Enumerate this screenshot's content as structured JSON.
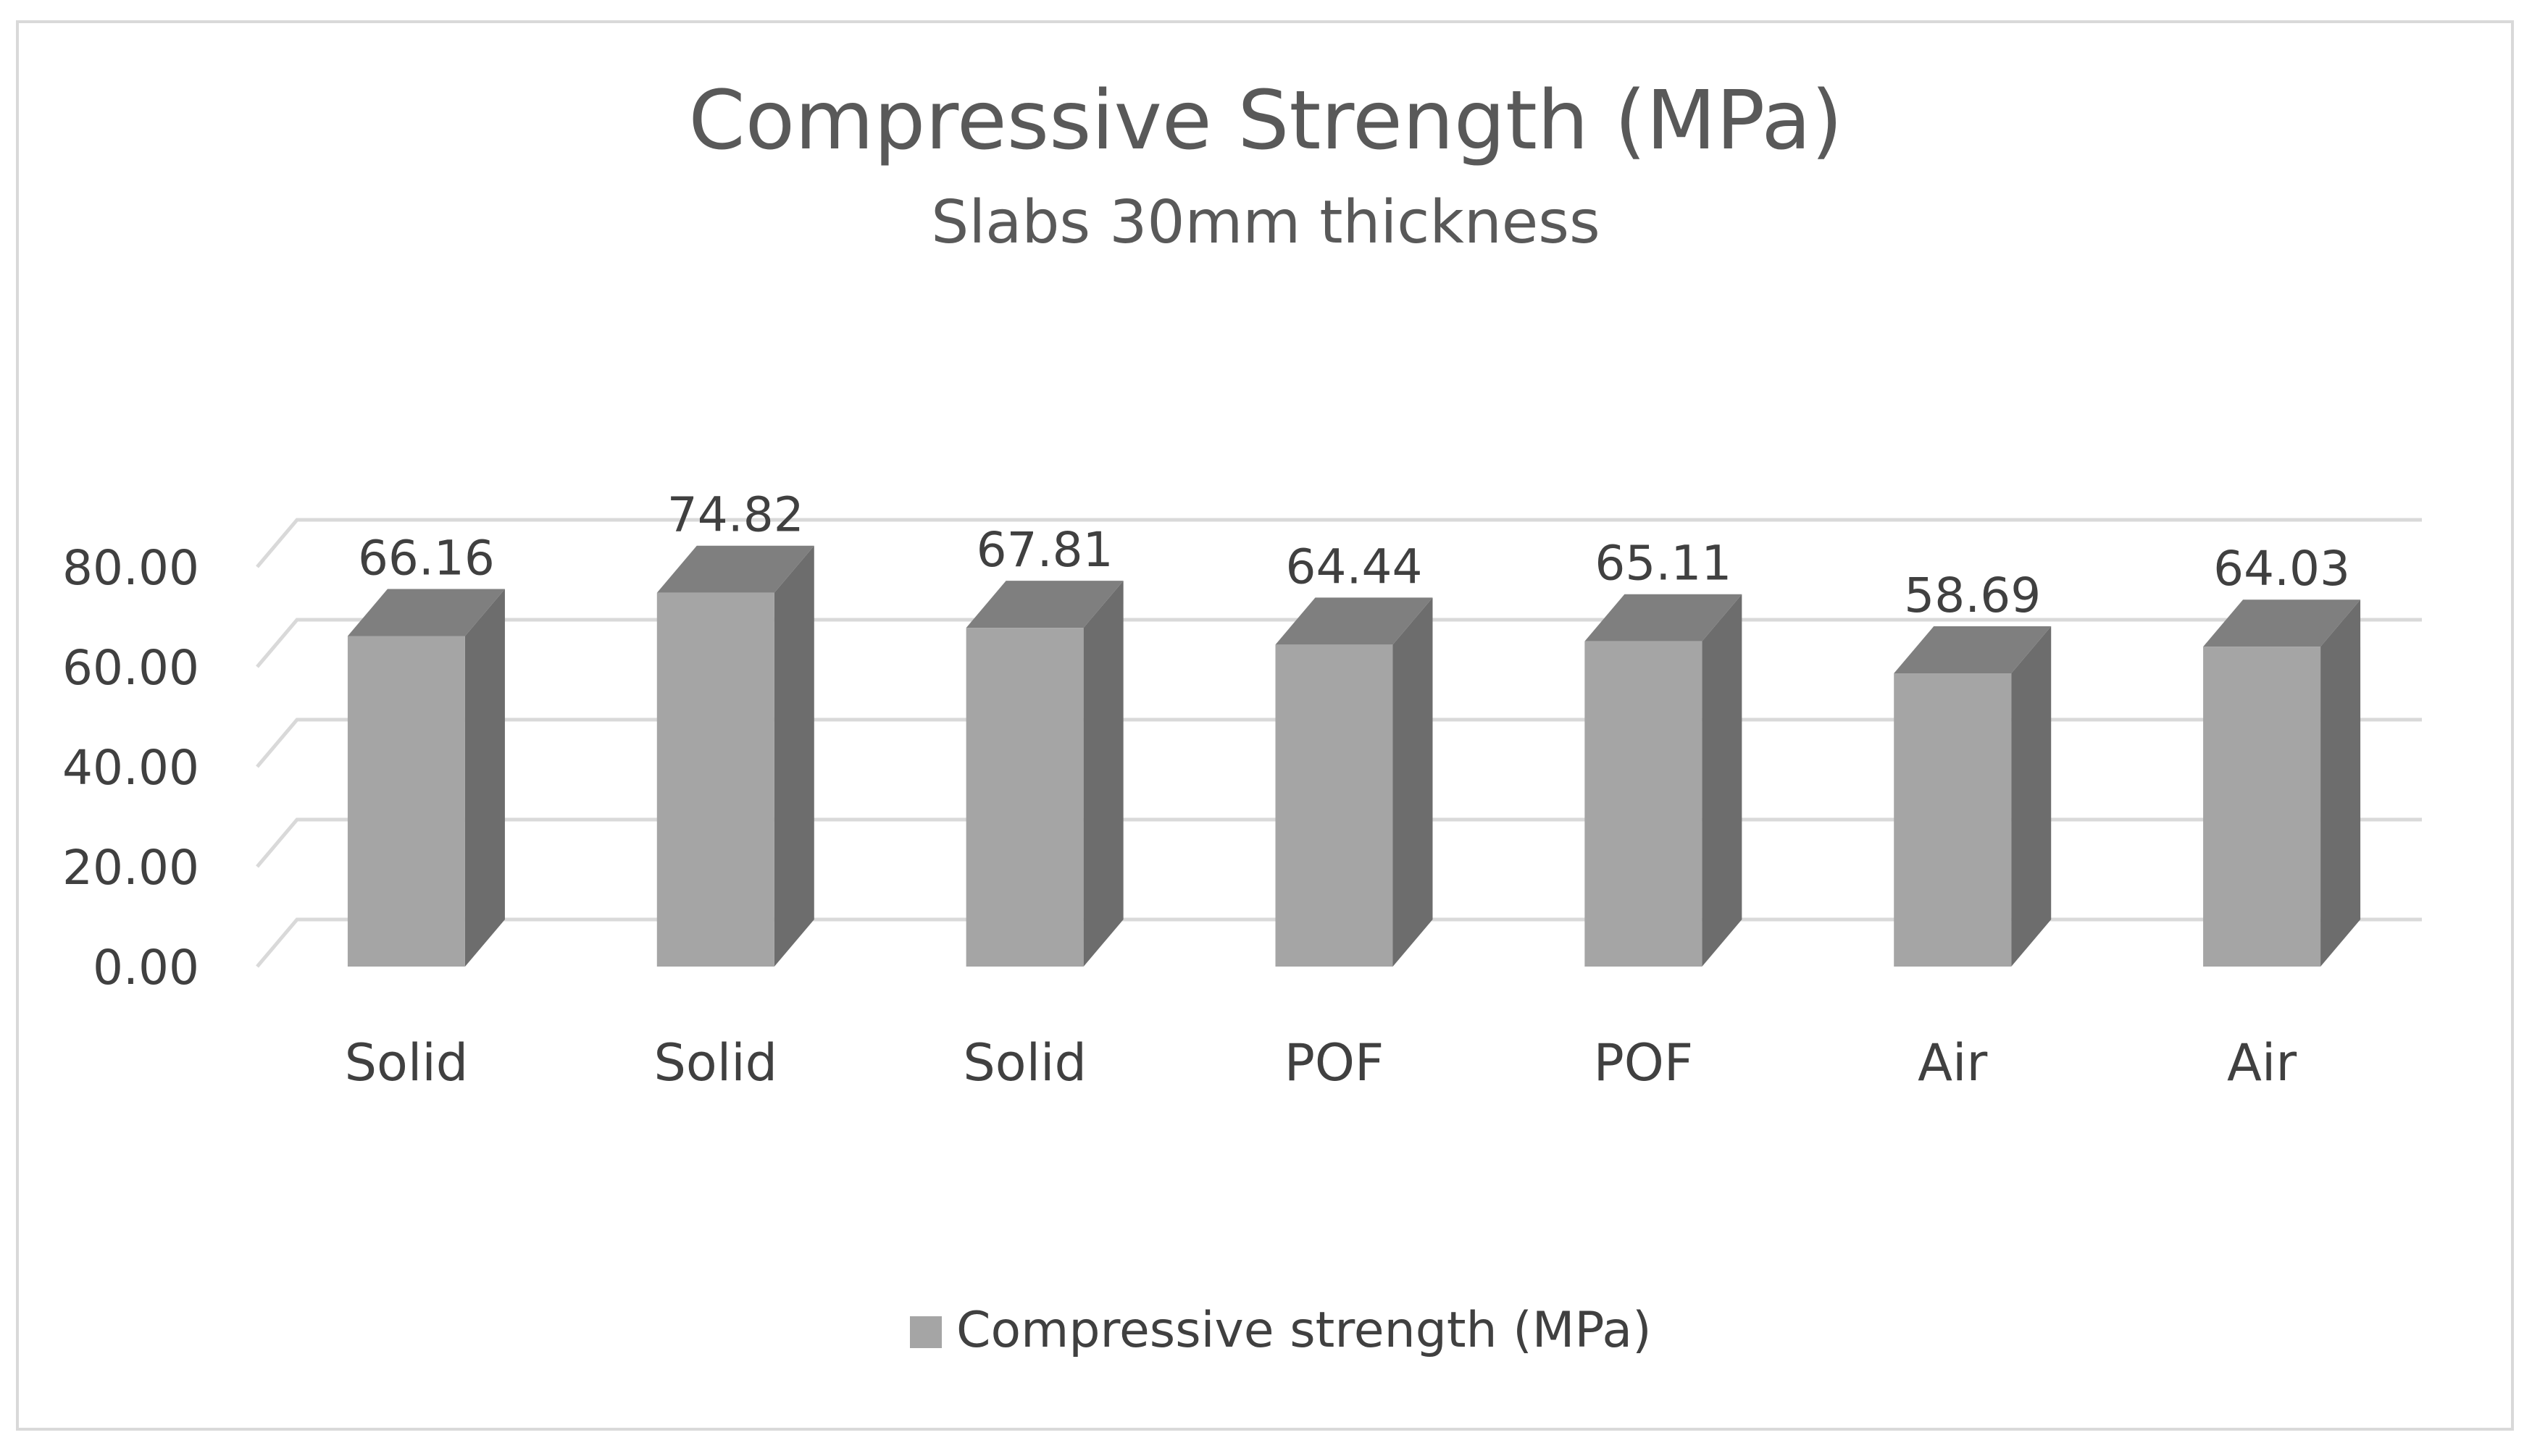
{
  "chart_data": {
    "type": "bar",
    "title": "Compressive Strength (MPa)",
    "subtitle": "Slabs 30mm thickness",
    "categories": [
      "Solid",
      "Solid",
      "Solid",
      "POF",
      "POF",
      "Air",
      "Air"
    ],
    "series": [
      {
        "name": "Compressive strength (MPa)",
        "values": [
          66.16,
          74.82,
          67.81,
          64.44,
          65.11,
          58.69,
          64.03
        ],
        "labels": [
          "66.16",
          "74.82",
          "67.81",
          "64.44",
          "65.11",
          "58.69",
          "64.03"
        ],
        "color": "#a5a5a5",
        "side_color": "#6d6d6d",
        "top_color": "#7f7f7f"
      }
    ],
    "yticks": [
      "0.00",
      "20.00",
      "40.00",
      "60.00",
      "80.00"
    ],
    "ytick_values": [
      0,
      20,
      40,
      60,
      80
    ],
    "ylim": [
      0,
      80
    ],
    "grid": true,
    "legend_position": "bottom",
    "style": "3d-column"
  }
}
